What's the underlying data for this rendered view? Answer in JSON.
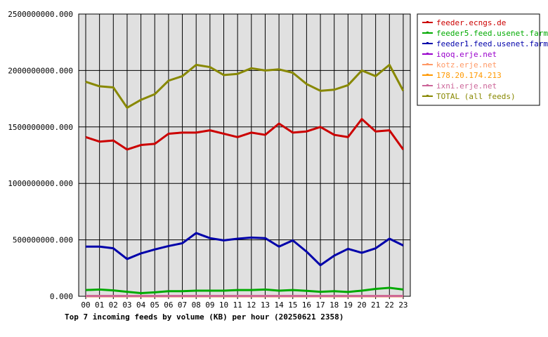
{
  "chart_data": {
    "type": "line",
    "title": "Top 7 incoming feeds by volume (KB) per hour (20250621 2358)",
    "xlabel": "",
    "ylabel": "",
    "categories": [
      "00",
      "01",
      "02",
      "03",
      "04",
      "05",
      "06",
      "07",
      "08",
      "09",
      "10",
      "11",
      "12",
      "13",
      "14",
      "15",
      "16",
      "17",
      "18",
      "19",
      "20",
      "21",
      "22",
      "23"
    ],
    "ylim": [
      0,
      2500000000
    ],
    "yticks": [
      {
        "value": 0,
        "label": "0.000"
      },
      {
        "value": 500000000,
        "label": "500000000.000"
      },
      {
        "value": 1000000000,
        "label": "1000000000.000"
      },
      {
        "value": 1500000000,
        "label": "1500000000.000"
      },
      {
        "value": 2000000000,
        "label": "2000000000.000"
      },
      {
        "value": 2500000000,
        "label": "2500000000.000"
      }
    ],
    "grid": true,
    "legend_position": "right",
    "series": [
      {
        "name": "feeder.ecngs.de",
        "color": "#cc0000",
        "values": [
          1410000000,
          1370000000,
          1380000000,
          1300000000,
          1340000000,
          1350000000,
          1440000000,
          1450000000,
          1450000000,
          1470000000,
          1440000000,
          1410000000,
          1450000000,
          1430000000,
          1530000000,
          1450000000,
          1460000000,
          1500000000,
          1430000000,
          1410000000,
          1570000000,
          1460000000,
          1470000000,
          1300000000
        ]
      },
      {
        "name": "feeder5.feed.usenet.farm",
        "color": "#00aa00",
        "values": [
          55000000,
          60000000,
          52000000,
          40000000,
          28000000,
          35000000,
          45000000,
          45000000,
          50000000,
          50000000,
          50000000,
          55000000,
          55000000,
          60000000,
          50000000,
          55000000,
          48000000,
          40000000,
          45000000,
          38000000,
          50000000,
          65000000,
          75000000,
          60000000
        ]
      },
      {
        "name": "feeder1.feed.usenet.farm",
        "color": "#0000aa",
        "values": [
          440000000,
          440000000,
          425000000,
          330000000,
          380000000,
          415000000,
          445000000,
          470000000,
          560000000,
          515000000,
          495000000,
          510000000,
          520000000,
          515000000,
          440000000,
          495000000,
          395000000,
          275000000,
          360000000,
          420000000,
          385000000,
          425000000,
          510000000,
          450000000
        ]
      },
      {
        "name": "iqoq.erje.net",
        "color": "#9900cc",
        "values": [
          2000000,
          2000000,
          2000000,
          2000000,
          2000000,
          2000000,
          2000000,
          2000000,
          2000000,
          2000000,
          2000000,
          2000000,
          2000000,
          2000000,
          2000000,
          2000000,
          2000000,
          2000000,
          2000000,
          2000000,
          2000000,
          2000000,
          2000000,
          2000000
        ]
      },
      {
        "name": "kotz.erje.net",
        "color": "#ff9966",
        "values": [
          3000000,
          3000000,
          3000000,
          3000000,
          3000000,
          3000000,
          3000000,
          3000000,
          3000000,
          3000000,
          3000000,
          3000000,
          3000000,
          3000000,
          3000000,
          3000000,
          3000000,
          3000000,
          3000000,
          3000000,
          3000000,
          3000000,
          3000000,
          3000000
        ]
      },
      {
        "name": "178.20.174.213",
        "color": "#ff9900",
        "values": [
          1000000,
          1000000,
          1000000,
          1000000,
          1000000,
          1000000,
          1000000,
          1000000,
          1000000,
          1000000,
          1000000,
          1000000,
          1000000,
          1000000,
          1000000,
          1000000,
          1000000,
          1000000,
          1000000,
          1000000,
          1000000,
          1000000,
          1000000,
          1000000
        ]
      },
      {
        "name": "ixni.erje.net",
        "color": "#cc6699",
        "values": [
          2500000,
          2500000,
          2500000,
          2500000,
          2500000,
          2500000,
          2500000,
          2500000,
          2500000,
          2500000,
          2500000,
          2500000,
          2500000,
          2500000,
          2500000,
          2500000,
          2500000,
          2500000,
          2500000,
          2500000,
          2500000,
          2500000,
          2500000,
          2500000
        ]
      },
      {
        "name": "TOTAL (all feeds)",
        "color": "#888800",
        "values": [
          1900000000,
          1860000000,
          1850000000,
          1670000000,
          1740000000,
          1790000000,
          1910000000,
          1950000000,
          2050000000,
          2030000000,
          1960000000,
          1970000000,
          2020000000,
          2000000000,
          2010000000,
          1980000000,
          1880000000,
          1820000000,
          1830000000,
          1870000000,
          2000000000,
          1950000000,
          2050000000,
          1820000000
        ]
      }
    ]
  }
}
